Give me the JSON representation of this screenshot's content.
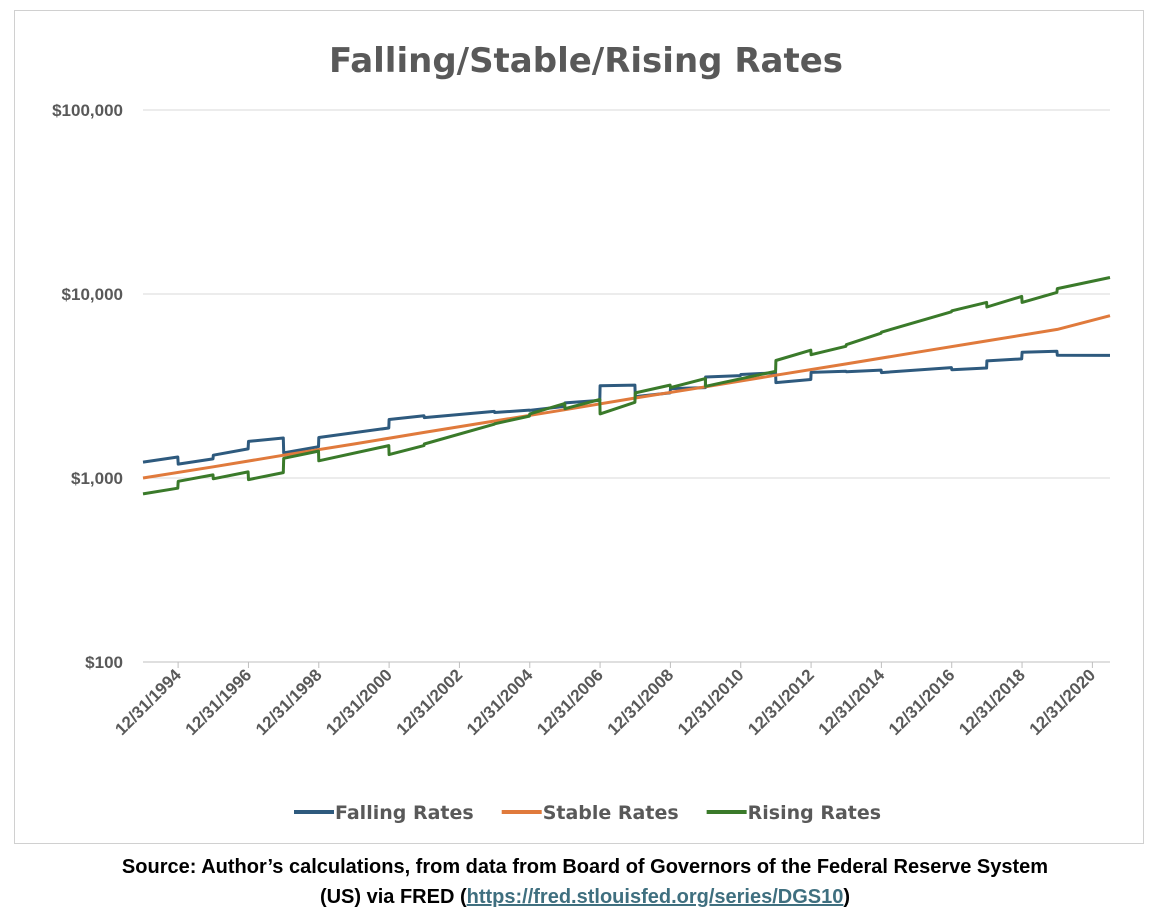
{
  "chart_data": {
    "type": "line",
    "title": "Falling/Stable/Rising Rates",
    "xlabel": "",
    "ylabel": "",
    "y_scale": "log",
    "ylim": [
      100,
      100000
    ],
    "y_ticks": [
      100,
      1000,
      10000,
      100000
    ],
    "y_tick_labels": [
      "$100",
      "$1,000",
      "$10,000",
      "$100,000"
    ],
    "xlim": [
      1994.0,
      2021.5
    ],
    "x_ticks": [
      "12/31/1994",
      "12/31/1996",
      "12/31/1998",
      "12/31/2000",
      "12/31/2002",
      "12/31/2004",
      "12/31/2006",
      "12/31/2008",
      "12/31/2010",
      "12/31/2012",
      "12/31/2014",
      "12/31/2016",
      "12/31/2018",
      "12/31/2020"
    ],
    "grid": "horizontal",
    "legend_position": "bottom",
    "series": [
      {
        "name": "Falling Rates",
        "color": "#2e5a7e",
        "points": [
          [
            1994.0,
            1220
          ],
          [
            1994.99,
            1300
          ],
          [
            1995.0,
            1190
          ],
          [
            1995.99,
            1270
          ],
          [
            1996.0,
            1330
          ],
          [
            1996.99,
            1440
          ],
          [
            1997.0,
            1580
          ],
          [
            1997.99,
            1650
          ],
          [
            1998.0,
            1370
          ],
          [
            1998.99,
            1480
          ],
          [
            1999.0,
            1660
          ],
          [
            2000.99,
            1870
          ],
          [
            2001.0,
            2080
          ],
          [
            2001.99,
            2180
          ],
          [
            2002.0,
            2130
          ],
          [
            2003.99,
            2300
          ],
          [
            2004.0,
            2270
          ],
          [
            2004.99,
            2340
          ],
          [
            2005.0,
            2330
          ],
          [
            2005.99,
            2450
          ],
          [
            2006.0,
            2560
          ],
          [
            2006.99,
            2640
          ],
          [
            2007.0,
            3170
          ],
          [
            2007.99,
            3200
          ],
          [
            2008.0,
            2770
          ],
          [
            2008.99,
            2900
          ],
          [
            2009.0,
            3060
          ],
          [
            2009.99,
            3100
          ],
          [
            2010.0,
            3540
          ],
          [
            2010.99,
            3600
          ],
          [
            2011.0,
            3650
          ],
          [
            2011.99,
            3730
          ],
          [
            2012.0,
            3300
          ],
          [
            2012.99,
            3430
          ],
          [
            2013.0,
            3750
          ],
          [
            2013.99,
            3800
          ],
          [
            2014.0,
            3780
          ],
          [
            2014.99,
            3860
          ],
          [
            2015.0,
            3740
          ],
          [
            2016.99,
            3980
          ],
          [
            2017.0,
            3880
          ],
          [
            2017.99,
            3960
          ],
          [
            2018.0,
            4330
          ],
          [
            2018.99,
            4440
          ],
          [
            2019.0,
            4820
          ],
          [
            2019.99,
            4880
          ],
          [
            2020.0,
            4650
          ],
          [
            2021.5,
            4640
          ]
        ]
      },
      {
        "name": "Stable Rates",
        "color": "#e07a3c",
        "points": [
          [
            1994.0,
            1000
          ],
          [
            1996.0,
            1150
          ],
          [
            1998.0,
            1330
          ],
          [
            2000.0,
            1530
          ],
          [
            2002.0,
            1770
          ],
          [
            2004.0,
            2040
          ],
          [
            2006.0,
            2350
          ],
          [
            2008.0,
            2720
          ],
          [
            2010.0,
            3130
          ],
          [
            2012.0,
            3620
          ],
          [
            2014.0,
            4170
          ],
          [
            2016.0,
            4820
          ],
          [
            2018.0,
            5560
          ],
          [
            2020.0,
            6420
          ],
          [
            2021.5,
            7620
          ]
        ]
      },
      {
        "name": "Rising Rates",
        "color": "#3a7a2a",
        "points": [
          [
            1994.0,
            820
          ],
          [
            1994.99,
            880
          ],
          [
            1995.0,
            960
          ],
          [
            1995.99,
            1040
          ],
          [
            1996.0,
            990
          ],
          [
            1996.99,
            1080
          ],
          [
            1997.0,
            980
          ],
          [
            1997.99,
            1070
          ],
          [
            1998.0,
            1280
          ],
          [
            1998.99,
            1400
          ],
          [
            1999.0,
            1240
          ],
          [
            2000.99,
            1500
          ],
          [
            2001.0,
            1340
          ],
          [
            2001.99,
            1500
          ],
          [
            2002.0,
            1530
          ],
          [
            2003.99,
            1960
          ],
          [
            2004.0,
            1970
          ],
          [
            2004.99,
            2170
          ],
          [
            2005.0,
            2230
          ],
          [
            2005.99,
            2540
          ],
          [
            2006.0,
            2380
          ],
          [
            2006.99,
            2670
          ],
          [
            2007.0,
            2230
          ],
          [
            2007.99,
            2580
          ],
          [
            2008.0,
            2900
          ],
          [
            2008.99,
            3200
          ],
          [
            2009.0,
            3100
          ],
          [
            2009.99,
            3470
          ],
          [
            2010.0,
            3150
          ],
          [
            2011.99,
            3800
          ],
          [
            2012.0,
            4350
          ],
          [
            2012.99,
            4950
          ],
          [
            2013.0,
            4680
          ],
          [
            2013.99,
            5200
          ],
          [
            2014.0,
            5300
          ],
          [
            2014.99,
            6120
          ],
          [
            2015.0,
            6200
          ],
          [
            2016.99,
            8000
          ],
          [
            2017.0,
            8100
          ],
          [
            2017.99,
            9000
          ],
          [
            2018.0,
            8500
          ],
          [
            2018.99,
            9700
          ],
          [
            2019.0,
            9000
          ],
          [
            2019.99,
            10200
          ],
          [
            2020.0,
            10700
          ],
          [
            2021.5,
            12300
          ]
        ]
      }
    ]
  },
  "source": {
    "line1": "Source: Author’s calculations, from data from Board of Governors of the Federal Reserve System",
    "line2_prefix": "(US) via FRED (",
    "link_text": "https://fred.stlouisfed.org/series/DGS10",
    "line2_suffix": ")"
  }
}
